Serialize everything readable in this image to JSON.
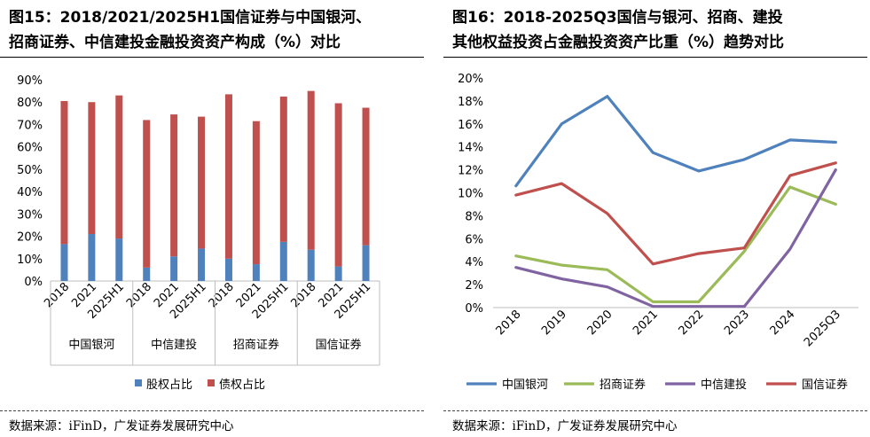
{
  "left": {
    "title_line1": "图15：2018/2021/2025H1国信证券与中国银河、",
    "title_line2": "招商证券、中信建投金融投资资产构成（%）对比",
    "source": "数据来源：iFinD，广发证券发展研究中心"
  },
  "right": {
    "title_line1": "图16：2018-2025Q3国信与银河、招商、建投",
    "title_line2": "其他权益投资占金融投资资产比重（%）趋势对比",
    "source": "数据来源：iFinD，广发证券发展研究中心"
  },
  "colors": {
    "equity": "#4f81bd",
    "bond": "#c0504d",
    "galaxy": "#4f81bd",
    "cms": "#9bbb59",
    "citic": "#8064a2",
    "guosen": "#c0504d",
    "grid": "#d9d9d9"
  },
  "chart_data": [
    {
      "type": "bar",
      "stacked": true,
      "title": "2018/2021/2025H1国信证券与中国银河、招商证券、中信建投金融投资资产构成（%）对比",
      "ylim": [
        0,
        90
      ],
      "yticks": [
        "0%",
        "10%",
        "20%",
        "30%",
        "40%",
        "50%",
        "60%",
        "70%",
        "80%",
        "90%"
      ],
      "groups": [
        "中国银河",
        "中信建投",
        "招商证券",
        "国信证券"
      ],
      "categories": [
        "2018",
        "2021",
        "2025H1",
        "2018",
        "2021",
        "2025H1",
        "2018",
        "2021",
        "2025H1",
        "2018",
        "2021",
        "2025H1"
      ],
      "series": [
        {
          "name": "股权占比",
          "values": [
            16.5,
            21,
            19,
            6,
            11,
            14.5,
            10,
            7.5,
            17.5,
            14,
            6.5,
            16
          ]
        },
        {
          "name": "债权占比",
          "values": [
            64,
            59,
            64,
            66,
            63.5,
            59,
            73.5,
            64,
            65,
            71,
            73,
            61.5
          ]
        }
      ],
      "legend": [
        "股权占比",
        "债权占比"
      ],
      "legend_position": "bottom"
    },
    {
      "type": "line",
      "title": "2018-2025Q3国信与银河、招商、建投其他权益投资占金融投资资产比重（%）趋势对比",
      "ylim": [
        0,
        20
      ],
      "yticks": [
        "0%",
        "2%",
        "4%",
        "6%",
        "8%",
        "10%",
        "12%",
        "14%",
        "16%",
        "18%",
        "20%"
      ],
      "x": [
        "2018",
        "2019",
        "2020",
        "2021",
        "2022",
        "2023",
        "2024",
        "2025Q3"
      ],
      "series": [
        {
          "name": "中国银河",
          "values": [
            10.6,
            16.0,
            18.4,
            13.5,
            11.9,
            12.9,
            14.6,
            14.4
          ]
        },
        {
          "name": "招商证券",
          "values": [
            4.5,
            3.7,
            3.3,
            0.5,
            0.5,
            4.9,
            10.5,
            9.0
          ]
        },
        {
          "name": "中信建投",
          "values": [
            3.5,
            2.5,
            1.8,
            0.1,
            0.1,
            0.1,
            5.1,
            12.0
          ]
        },
        {
          "name": "国信证券",
          "values": [
            9.8,
            10.8,
            8.2,
            3.8,
            4.7,
            5.2,
            11.5,
            12.6
          ]
        }
      ],
      "legend": [
        "中国银河",
        "招商证券",
        "中信建投",
        "国信证券"
      ],
      "legend_position": "bottom"
    }
  ]
}
